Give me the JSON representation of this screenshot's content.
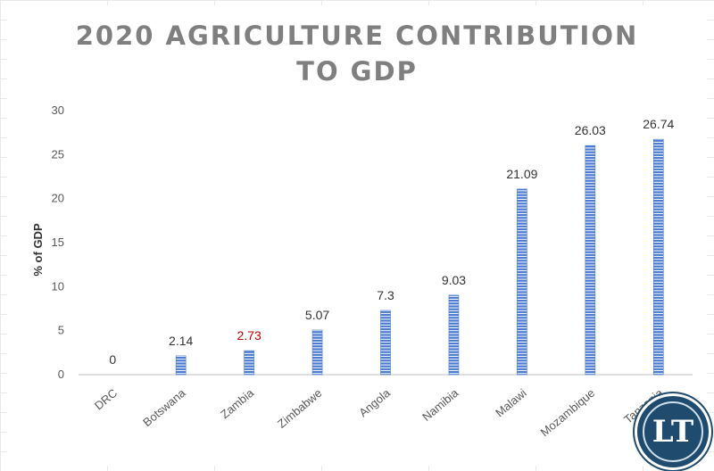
{
  "chart_data": {
    "type": "bar",
    "title_lines": [
      "2020 AGRICULTURE CONTRIBUTION",
      "TO GDP"
    ],
    "xlabel": "",
    "ylabel": "% of GDP",
    "categories": [
      "DRC",
      "Botswana",
      "Zambia",
      "Zimbabwe",
      "Angola",
      "Namibia",
      "Malawi",
      "Mozambique",
      "Tanzania"
    ],
    "values": [
      0,
      2.14,
      2.73,
      5.07,
      7.3,
      9.03,
      21.09,
      26.03,
      26.74
    ],
    "data_labels": [
      "0",
      "2.14",
      "2.73",
      "5.07",
      "7.3",
      "9.03",
      "21.09",
      "26.03",
      "26.74"
    ],
    "highlight_category": "Zambia",
    "ylim": [
      0,
      30
    ],
    "yticks": [
      0,
      5,
      10,
      15,
      20,
      25,
      30
    ],
    "grid": false,
    "legend": "none",
    "colors": {
      "bar": "#4a7bd0",
      "bar_stripe": "#ffffff",
      "highlight_label": "#c00000",
      "label": "#333333",
      "tick": "#595959",
      "title": "#7f7f7f",
      "axis": "#bfbfbf"
    }
  },
  "logo": {
    "text": "LT",
    "icon": "lusaka-times-logo-icon"
  }
}
